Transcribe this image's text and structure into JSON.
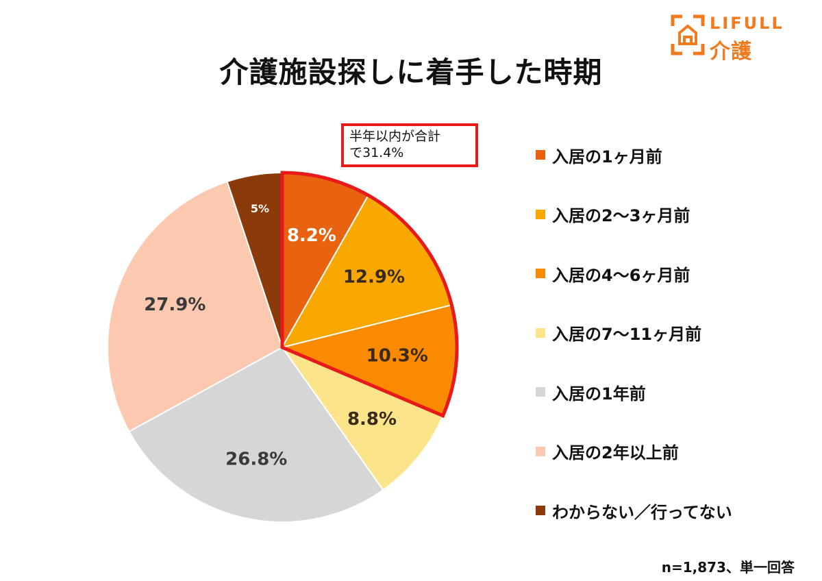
{
  "brand": {
    "logo_text": "LIFULL",
    "logo_sub": "介護",
    "logo_color": "#f07a1e"
  },
  "chart_data": {
    "type": "pie",
    "title": "介護施設探しに着手した時期",
    "slices": [
      {
        "label": "入居の1ヶ月前",
        "value": 8.2,
        "value_label": "8.2%",
        "color": "#e8620f",
        "label_color": "#ffffff"
      },
      {
        "label": "入居の2〜3ヶ月前",
        "value": 12.9,
        "value_label": "12.9%",
        "color": "#f9a800",
        "label_color": "#3a2a1a"
      },
      {
        "label": "入居の4〜6ヶ月前",
        "value": 10.3,
        "value_label": "10.3%",
        "color": "#fa8a00",
        "label_color": "#3a2a1a"
      },
      {
        "label": "入居の7〜11ヶ月前",
        "value": 8.8,
        "value_label": "8.8%",
        "color": "#fbe48a",
        "label_color": "#3a2a1a"
      },
      {
        "label": "入居の1年前",
        "value": 26.8,
        "value_label": "26.8%",
        "color": "#d6d6d6",
        "label_color": "#3a3a3a"
      },
      {
        "label": "入居の2年以上前",
        "value": 27.9,
        "value_label": "27.9%",
        "color": "#fcc9b0",
        "label_color": "#3a3a3a"
      },
      {
        "label": "わからない／行ってない",
        "value": 5.1,
        "value_label": "5%",
        "color": "#8b3a0a",
        "label_color": "#ffffff"
      }
    ],
    "start_angle_deg": 0,
    "direction": "clockwise",
    "highlight": {
      "slices": [
        0,
        1,
        2
      ],
      "color": "#e8191b",
      "callout_text": "半年以内が合計\nで31.4%"
    },
    "legend_position": "right",
    "note": "n=1,873、単一回答"
  }
}
